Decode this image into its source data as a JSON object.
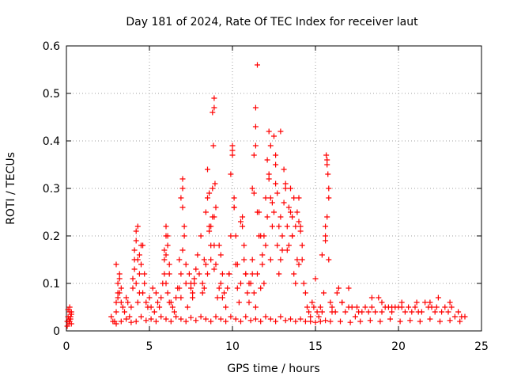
{
  "chart_data": {
    "type": "scatter",
    "title": "Day 181 of 2024, Rate Of TEC Index for receiver laut",
    "xlabel": "GPS time / hours",
    "ylabel": "ROTI / TECUs",
    "xlim": [
      0,
      25
    ],
    "ylim": [
      0,
      0.6
    ],
    "xticks": [
      0,
      5,
      10,
      15,
      20,
      25
    ],
    "xtick_labels": [
      "0",
      "5",
      "10",
      "15",
      "20",
      "25"
    ],
    "yticks": [
      0,
      0.1,
      0.2,
      0.3,
      0.4,
      0.5,
      0.6
    ],
    "ytick_labels": [
      "0",
      "0.1",
      "0.2",
      "0.3",
      "0.4",
      "0.5",
      "0.6"
    ],
    "grid": true,
    "legend": "none",
    "marker": "plus",
    "color": "#ff0000",
    "series": [
      {
        "x": [
          0.05,
          0.1,
          0.15,
          0.2,
          0.25,
          0.3,
          0.05,
          0.1,
          0.2,
          0.25,
          0.3,
          0.15,
          0.2,
          0.3,
          2.7,
          2.9,
          3.0,
          3.1,
          3.2,
          3.3,
          3.4,
          3.5,
          3.6,
          3.7,
          3.8,
          3.9,
          4.0,
          4.1,
          4.2,
          4.3,
          4.4,
          4.5,
          4.6,
          4.7,
          4.8,
          4.9,
          5.0,
          5.1,
          5.2,
          5.3,
          5.4,
          5.5,
          5.6,
          5.7,
          5.8,
          5.9,
          6.0,
          6.1,
          6.2,
          6.3,
          6.4,
          6.5,
          6.6,
          6.7,
          6.8,
          6.9,
          7.0,
          7.1,
          7.2,
          7.3,
          7.4,
          7.5,
          7.6,
          7.7,
          7.8,
          7.9,
          8.0,
          8.1,
          8.2,
          8.3,
          8.4,
          8.5,
          8.6,
          8.7,
          8.8,
          8.9,
          9.0,
          9.1,
          9.2,
          9.3,
          9.4,
          9.5,
          9.6,
          9.7,
          9.8,
          9.9,
          10.0,
          10.1,
          10.2,
          10.3,
          10.4,
          10.5,
          10.6,
          10.7,
          10.8,
          10.9,
          11.0,
          11.1,
          11.2,
          11.3,
          11.4,
          11.5,
          11.6,
          11.7,
          11.8,
          11.9,
          12.0,
          12.1,
          12.2,
          12.3,
          12.4,
          12.5,
          12.6,
          12.7,
          12.8,
          12.9,
          13.0,
          13.1,
          13.2,
          13.3,
          13.4,
          13.5,
          13.6,
          13.7,
          13.8,
          13.9,
          14.0,
          14.1,
          14.2,
          14.3,
          14.4,
          14.5,
          14.6,
          14.7,
          14.8,
          14.9,
          15.0,
          15.1,
          15.2,
          15.3,
          15.4,
          15.5,
          15.6,
          15.7,
          15.8,
          15.9,
          16.0,
          16.2,
          16.4,
          16.6,
          16.8,
          17.0,
          17.2,
          17.4,
          17.6,
          17.8,
          18.0,
          18.2,
          18.4,
          18.6,
          18.8,
          19.0,
          19.2,
          19.4,
          19.6,
          19.8,
          20.0,
          20.2,
          20.4,
          20.6,
          20.8,
          21.0,
          21.2,
          21.4,
          21.6,
          21.8,
          22.0,
          22.2,
          22.4,
          22.6,
          22.8,
          23.0,
          23.2,
          23.4,
          23.6,
          23.8,
          24.0,
          3.0,
          3.1,
          3.2,
          3.2,
          3.3,
          3.0,
          3.1,
          4.1,
          4.2,
          4.3,
          4.4,
          4.0,
          4.1,
          4.5,
          4.6,
          4.2,
          4.4,
          4.7,
          4.3,
          5.9,
          6.0,
          6.1,
          6.2,
          6.0,
          6.1,
          5.9,
          6.2,
          6.0,
          6.9,
          7.0,
          7.0,
          7.1,
          6.8,
          7.0,
          7.2,
          6.9,
          7.5,
          7.6,
          7.7,
          8.2,
          8.4,
          8.5,
          8.6,
          8.7,
          8.8,
          8.8,
          8.9,
          8.9,
          8.85,
          8.95,
          9.0,
          8.9,
          8.7,
          8.5,
          8.3,
          8.6,
          8.9,
          9.2,
          9.3,
          9.4,
          9.9,
          10.0,
          10.0,
          10.1,
          10.1,
          10.2,
          9.8,
          10.3,
          10.5,
          10.6,
          10.7,
          10.8,
          11.2,
          11.3,
          11.4,
          11.4,
          11.5,
          11.4,
          11.3,
          11.5,
          11.6,
          11.2,
          11.0,
          11.7,
          11.8,
          11.9,
          12.0,
          12.1,
          12.2,
          12.3,
          12.2,
          12.4,
          12.5,
          12.6,
          12.7,
          12.8,
          12.3,
          12.6,
          12.9,
          13.0,
          12.9,
          13.1,
          13.2,
          13.4,
          13.5,
          13.6,
          13.7,
          13.8,
          13.9,
          13.3,
          13.6,
          14.0,
          14.1,
          14.2,
          14.0,
          15.4,
          15.6,
          15.7,
          15.8,
          15.75,
          15.65,
          15.7,
          15.8,
          15.6,
          16.0,
          16.3,
          16.6,
          17.0,
          17.5,
          18.4,
          19.0,
          19.6,
          20.2,
          21.1,
          21.9,
          22.3,
          23.1,
          2.8,
          3.0,
          3.3,
          3.6,
          3.9,
          4.2,
          4.5,
          4.8,
          5.1,
          5.4,
          5.7,
          6.0,
          6.3,
          6.6,
          6.9,
          7.2,
          7.5,
          7.8,
          8.1,
          8.4,
          8.7,
          9.0,
          9.3,
          9.6,
          9.9,
          10.2,
          10.5,
          10.8,
          11.1,
          11.4,
          11.7,
          12.0,
          12.3,
          12.6,
          12.9,
          13.2,
          13.5,
          13.8,
          14.1,
          14.4,
          14.7,
          15.0,
          15.3,
          15.6,
          15.9,
          16.5,
          17.1,
          17.7,
          18.3,
          18.9,
          19.5,
          20.1,
          20.7,
          21.3,
          21.9,
          22.5,
          23.1,
          23.7
        ],
        "y": [
          0.02,
          0.03,
          0.015,
          0.04,
          0.025,
          0.035,
          0.01,
          0.045,
          0.02,
          0.03,
          0.015,
          0.025,
          0.05,
          0.04,
          0.03,
          0.02,
          0.06,
          0.08,
          0.11,
          0.09,
          0.05,
          0.04,
          0.07,
          0.06,
          0.03,
          0.05,
          0.09,
          0.17,
          0.21,
          0.15,
          0.12,
          0.18,
          0.08,
          0.1,
          0.06,
          0.05,
          0.07,
          0.05,
          0.09,
          0.04,
          0.08,
          0.06,
          0.05,
          0.07,
          0.1,
          0.15,
          0.2,
          0.18,
          0.12,
          0.06,
          0.05,
          0.04,
          0.07,
          0.09,
          0.15,
          0.28,
          0.3,
          0.22,
          0.1,
          0.05,
          0.12,
          0.09,
          0.07,
          0.1,
          0.13,
          0.16,
          0.12,
          0.2,
          0.08,
          0.15,
          0.25,
          0.28,
          0.22,
          0.18,
          0.3,
          0.24,
          0.14,
          0.07,
          0.18,
          0.1,
          0.12,
          0.08,
          0.05,
          0.09,
          0.12,
          0.2,
          0.38,
          0.26,
          0.14,
          0.09,
          0.06,
          0.1,
          0.22,
          0.15,
          0.12,
          0.08,
          0.06,
          0.1,
          0.15,
          0.08,
          0.05,
          0.12,
          0.25,
          0.2,
          0.14,
          0.1,
          0.18,
          0.24,
          0.32,
          0.28,
          0.22,
          0.25,
          0.35,
          0.18,
          0.12,
          0.15,
          0.2,
          0.27,
          0.3,
          0.22,
          0.18,
          0.25,
          0.2,
          0.12,
          0.1,
          0.15,
          0.28,
          0.22,
          0.15,
          0.1,
          0.08,
          0.05,
          0.04,
          0.03,
          0.06,
          0.05,
          0.11,
          0.04,
          0.03,
          0.05,
          0.04,
          0.08,
          0.2,
          0.35,
          0.15,
          0.06,
          0.05,
          0.04,
          0.09,
          0.06,
          0.04,
          0.05,
          0.05,
          0.03,
          0.04,
          0.04,
          0.05,
          0.04,
          0.05,
          0.04,
          0.07,
          0.04,
          0.05,
          0.05,
          0.04,
          0.05,
          0.05,
          0.06,
          0.04,
          0.05,
          0.04,
          0.05,
          0.04,
          0.04,
          0.06,
          0.05,
          0.05,
          0.04,
          0.07,
          0.04,
          0.05,
          0.04,
          0.05,
          0.03,
          0.04,
          0.03,
          0.03,
          0.14,
          0.1,
          0.08,
          0.12,
          0.06,
          0.04,
          0.07,
          0.13,
          0.19,
          0.22,
          0.16,
          0.11,
          0.15,
          0.14,
          0.18,
          0.1,
          0.08,
          0.12,
          0.06,
          0.17,
          0.22,
          0.2,
          0.14,
          0.1,
          0.08,
          0.12,
          0.06,
          0.16,
          0.12,
          0.32,
          0.26,
          0.2,
          0.09,
          0.17,
          0.14,
          0.07,
          0.1,
          0.08,
          0.11,
          0.1,
          0.14,
          0.34,
          0.29,
          0.22,
          0.24,
          0.46,
          0.49,
          0.47,
          0.39,
          0.31,
          0.26,
          0.18,
          0.15,
          0.12,
          0.09,
          0.21,
          0.13,
          0.09,
          0.16,
          0.07,
          0.33,
          0.39,
          0.37,
          0.28,
          0.26,
          0.2,
          0.12,
          0.14,
          0.23,
          0.24,
          0.18,
          0.12,
          0.3,
          0.37,
          0.43,
          0.47,
          0.56,
          0.39,
          0.29,
          0.25,
          0.2,
          0.12,
          0.1,
          0.09,
          0.16,
          0.2,
          0.28,
          0.36,
          0.42,
          0.39,
          0.33,
          0.27,
          0.41,
          0.37,
          0.29,
          0.22,
          0.15,
          0.31,
          0.24,
          0.17,
          0.42,
          0.34,
          0.31,
          0.26,
          0.3,
          0.24,
          0.28,
          0.22,
          0.25,
          0.17,
          0.2,
          0.23,
          0.21,
          0.18,
          0.14,
          0.16,
          0.19,
          0.24,
          0.28,
          0.33,
          0.37,
          0.36,
          0.3,
          0.22,
          0.04,
          0.08,
          0.06,
          0.09,
          0.05,
          0.07,
          0.06,
          0.05,
          0.05,
          0.06,
          0.06,
          0.05,
          0.06,
          0.02,
          0.015,
          0.02,
          0.025,
          0.018,
          0.02,
          0.03,
          0.022,
          0.025,
          0.02,
          0.03,
          0.025,
          0.02,
          0.03,
          0.025,
          0.02,
          0.028,
          0.022,
          0.03,
          0.025,
          0.02,
          0.03,
          0.025,
          0.02,
          0.03,
          0.025,
          0.02,
          0.03,
          0.022,
          0.025,
          0.02,
          0.03,
          0.025,
          0.02,
          0.03,
          0.022,
          0.025,
          0.02,
          0.025,
          0.02,
          0.02,
          0.018,
          0.02,
          0.022,
          0.02,
          0.02,
          0.018,
          0.02,
          0.022,
          0.02,
          0.025,
          0.02,
          0.022,
          0.02,
          0.025,
          0.02,
          0.022,
          0.02
        ]
      }
    ]
  }
}
